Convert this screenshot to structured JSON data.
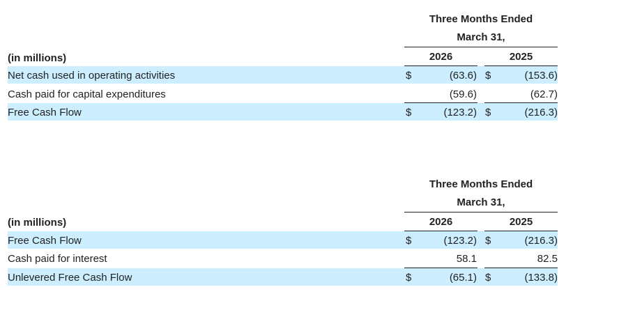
{
  "tables": [
    {
      "header_line1": "Three Months Ended",
      "header_line2": "March 31,",
      "unit_label": "(in millions)",
      "years": [
        "2026",
        "2025"
      ],
      "rows": [
        {
          "label": "Net cash used in operating activities",
          "c1": "(63.6)",
          "c2": "(153.6)",
          "dollar1": "$",
          "dollar2": "$"
        },
        {
          "label": "Cash paid for capital expenditures",
          "c1": "(59.6)",
          "c2": "(62.7)",
          "dollar1": "",
          "dollar2": ""
        },
        {
          "label": "Free Cash Flow",
          "c1": "(123.2)",
          "c2": "(216.3)",
          "dollar1": "$",
          "dollar2": "$"
        }
      ]
    },
    {
      "header_line1": "Three Months Ended",
      "header_line2": "March 31,",
      "unit_label": "(in millions)",
      "years": [
        "2026",
        "2025"
      ],
      "rows": [
        {
          "label": "Free Cash Flow",
          "c1": "(123.2)",
          "c2": "(216.3)",
          "dollar1": "$",
          "dollar2": "$"
        },
        {
          "label": "Cash paid for interest",
          "c1": "58.1",
          "c2": "82.5",
          "dollar1": "",
          "dollar2": ""
        },
        {
          "label": "Unlevered Free Cash Flow",
          "c1": "(65.1)",
          "c2": "(133.8)",
          "dollar1": "$",
          "dollar2": "$"
        }
      ]
    }
  ]
}
